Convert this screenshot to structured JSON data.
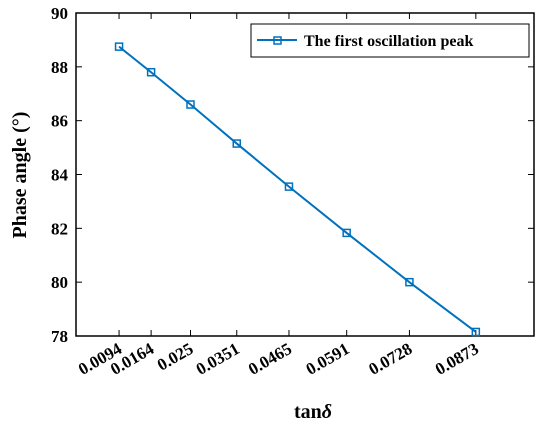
{
  "chart_data": {
    "type": "line",
    "x_categories": [
      "0.0094",
      "0.0164",
      "0.025",
      "0.0351",
      "0.0465",
      "0.0591",
      "0.0728",
      "0.0873"
    ],
    "x": [
      0.0094,
      0.0164,
      0.025,
      0.0351,
      0.0465,
      0.0591,
      0.0728,
      0.0873
    ],
    "series": [
      {
        "name": "The first oscillation peak",
        "values": [
          88.75,
          87.8,
          86.6,
          85.15,
          83.55,
          81.83,
          80.0,
          78.15
        ],
        "color": "#0072BD",
        "marker": "square"
      }
    ],
    "xlabel_prefix": "tan",
    "xlabel_symbol": "δ",
    "ylabel": "Phase angle (°)",
    "xlim": [
      0,
      0.1
    ],
    "ylim": [
      78,
      90
    ],
    "yticks": [
      78,
      80,
      82,
      84,
      86,
      88,
      90
    ],
    "grid": false,
    "legend_position": "top-right"
  }
}
